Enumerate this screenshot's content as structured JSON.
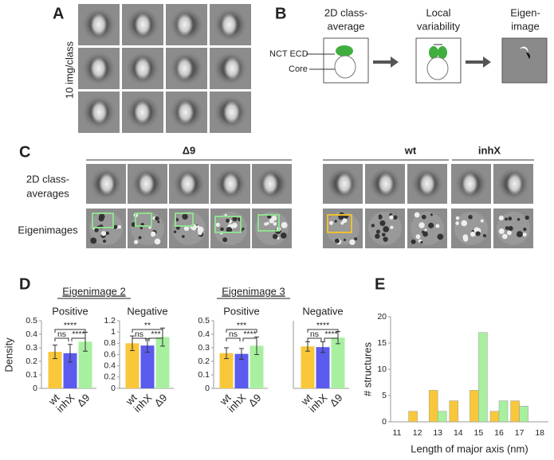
{
  "panels": {
    "A": {
      "letter": "A",
      "ylabel": "10 img/class"
    },
    "B": {
      "letter": "B",
      "steps": [
        [
          "2D class-",
          "average"
        ],
        [
          "Local",
          "variability"
        ],
        [
          "Eigen-",
          "image"
        ]
      ],
      "parts": [
        "NCT ECD",
        "Core"
      ]
    },
    "C": {
      "letter": "C",
      "groups": [
        "Δ9",
        "wt",
        "inhX"
      ],
      "rows": [
        [
          "2D class-",
          "averages"
        ],
        [
          "Eigenimages"
        ]
      ]
    },
    "D": {
      "letter": "D",
      "headers": [
        "Eigenimage 2",
        "Eigenimage 3"
      ]
    },
    "E": {
      "letter": "E"
    }
  },
  "chart_data": [
    {
      "type": "bar",
      "subtitle": "Positive",
      "ylabel": "Density",
      "categories": [
        "wt",
        "inhX",
        "Δ9"
      ],
      "values": [
        0.27,
        0.26,
        0.345
      ],
      "errors": [
        0.05,
        0.065,
        0.07
      ],
      "colors": [
        "#f9c73a",
        "#5b5bef",
        "#a8f0a0"
      ],
      "ylim": [
        0,
        0.5
      ],
      "yticks": [
        0,
        0.1,
        0.2,
        0.3,
        0.4,
        0.5
      ],
      "annotations": [
        "****",
        "ns",
        "****"
      ]
    },
    {
      "type": "bar",
      "subtitle": "Negative",
      "categories": [
        "wt",
        "inhX",
        "Δ9"
      ],
      "values": [
        0.8,
        0.76,
        0.91
      ],
      "errors": [
        0.13,
        0.12,
        0.16
      ],
      "colors": [
        "#f9c73a",
        "#5b5bef",
        "#a8f0a0"
      ],
      "ylim": [
        0,
        1.2
      ],
      "yticks": [
        0,
        0.2,
        0.4,
        0.6,
        0.8,
        1,
        1.2
      ],
      "annotations": [
        "**",
        "ns",
        "***"
      ]
    },
    {
      "type": "bar",
      "subtitle": "Positive",
      "categories": [
        "wt",
        "inhX",
        "Δ9"
      ],
      "values": [
        0.26,
        0.255,
        0.315
      ],
      "errors": [
        0.04,
        0.04,
        0.065
      ],
      "colors": [
        "#f9c73a",
        "#5b5bef",
        "#a8f0a0"
      ],
      "ylim": [
        0,
        0.5
      ],
      "yticks": [
        0,
        0.1,
        0.2,
        0.3,
        0.4,
        0.5
      ],
      "annotations": [
        "***",
        "ns",
        "****"
      ]
    },
    {
      "type": "bar",
      "subtitle": "Negative",
      "categories": [
        "wt",
        "inhX",
        "Δ9"
      ],
      "values": [
        0.31,
        0.305,
        0.375
      ],
      "errors": [
        0.035,
        0.04,
        0.045
      ],
      "colors": [
        "#f9c73a",
        "#5b5bef",
        "#a8f0a0"
      ],
      "ylim": [
        0,
        0.5
      ],
      "annotations": [
        "****",
        "ns",
        "****"
      ]
    },
    {
      "type": "bar",
      "xlabel": "Length of major axis (nm)",
      "ylabel": "# structures",
      "categories": [
        "11",
        "12",
        "13",
        "14",
        "15",
        "16",
        "17",
        "18"
      ],
      "series": [
        {
          "color": "#f9c73a",
          "values": [
            0,
            2,
            6,
            4,
            6,
            2,
            4,
            0
          ]
        },
        {
          "color": "#a8f0a0",
          "values": [
            0,
            0,
            2,
            0,
            17,
            4,
            3,
            0
          ]
        }
      ],
      "ylim": [
        0,
        20
      ],
      "yticks": [
        0,
        5,
        10,
        15,
        20
      ]
    }
  ]
}
